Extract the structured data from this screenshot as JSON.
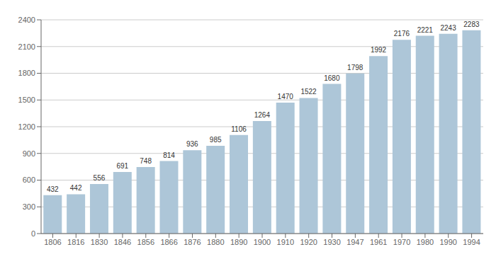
{
  "chart_data": {
    "type": "bar",
    "categories": [
      "1806",
      "1816",
      "1830",
      "1846",
      "1856",
      "1866",
      "1876",
      "1880",
      "1890",
      "1900",
      "1910",
      "1920",
      "1930",
      "1947",
      "1961",
      "1970",
      "1980",
      "1990",
      "1994"
    ],
    "values": [
      432,
      442,
      556,
      691,
      748,
      814,
      936,
      985,
      1106,
      1264,
      1470,
      1522,
      1680,
      1798,
      1992,
      2176,
      2221,
      2243,
      2283
    ],
    "color": "#adc6d8",
    "ylim": [
      0,
      2400
    ],
    "yticks": [
      0,
      300,
      600,
      900,
      1200,
      1500,
      1800,
      2100,
      2400
    ],
    "grid": true,
    "data_labels": true
  }
}
